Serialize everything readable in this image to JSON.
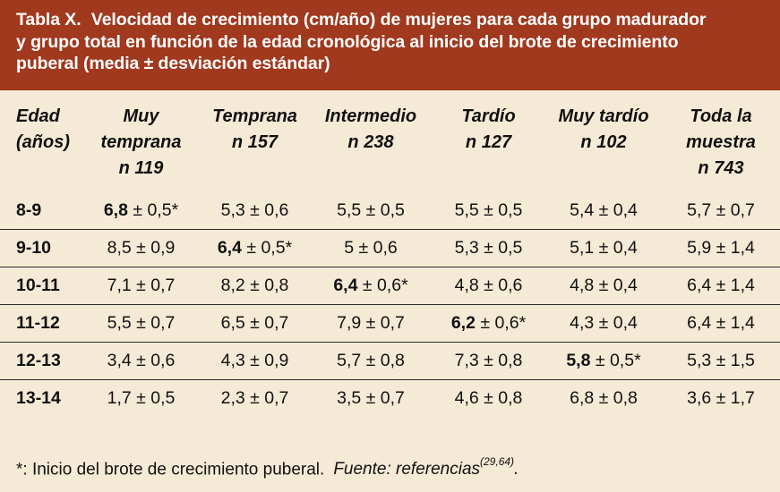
{
  "title": {
    "label": "Tabla X.",
    "line1": "Velocidad de crecimiento (cm/año) de mujeres para cada grupo madurador",
    "line2": "y grupo total en función de la edad cronológica al inicio del brote de crecimiento",
    "line3": "puberal (media ± desviación estándar)"
  },
  "columns": [
    {
      "line1": "Edad",
      "line2": "(años)",
      "line3": ""
    },
    {
      "line1": "Muy",
      "line2": "temprana",
      "line3": "n 119"
    },
    {
      "line1": "Temprana",
      "line2": "n 157",
      "line3": ""
    },
    {
      "line1": "Intermedio",
      "line2": "n 238",
      "line3": ""
    },
    {
      "line1": "Tardío",
      "line2": "n 127",
      "line3": ""
    },
    {
      "line1": "Muy tardío",
      "line2": "n 102",
      "line3": ""
    },
    {
      "line1": "Toda la",
      "line2": "muestra",
      "line3": "n 743"
    }
  ],
  "rows": [
    {
      "age": "8-9",
      "cells": [
        {
          "mean": "6,8",
          "sd": "± 0,5",
          "mark": "*"
        },
        {
          "mean": "5,3",
          "sd": "± 0,6",
          "mark": ""
        },
        {
          "mean": "5,5",
          "sd": "± 0,5",
          "mark": ""
        },
        {
          "mean": "5,5",
          "sd": "± 0,5",
          "mark": ""
        },
        {
          "mean": "5,4",
          "sd": "± 0,4",
          "mark": ""
        },
        {
          "mean": "5,7",
          "sd": "± 0,7",
          "mark": ""
        }
      ]
    },
    {
      "age": "9-10",
      "cells": [
        {
          "mean": "8,5",
          "sd": "± 0,9",
          "mark": ""
        },
        {
          "mean": "6,4",
          "sd": "± 0,5",
          "mark": "*"
        },
        {
          "mean": "5",
          "sd": "± 0,6",
          "mark": ""
        },
        {
          "mean": "5,3",
          "sd": "± 0,5",
          "mark": ""
        },
        {
          "mean": "5,1",
          "sd": "± 0,4",
          "mark": ""
        },
        {
          "mean": "5,9",
          "sd": "± 1,4",
          "mark": ""
        }
      ]
    },
    {
      "age": "10-11",
      "cells": [
        {
          "mean": "7,1",
          "sd": "± 0,7",
          "mark": ""
        },
        {
          "mean": "8,2",
          "sd": "± 0,8",
          "mark": ""
        },
        {
          "mean": "6,4",
          "sd": "± 0,6",
          "mark": "*"
        },
        {
          "mean": "4,8",
          "sd": "± 0,6",
          "mark": ""
        },
        {
          "mean": "4,8",
          "sd": "± 0,4",
          "mark": ""
        },
        {
          "mean": "6,4",
          "sd": "± 1,4",
          "mark": ""
        }
      ]
    },
    {
      "age": "11-12",
      "cells": [
        {
          "mean": "5,5",
          "sd": "± 0,7",
          "mark": ""
        },
        {
          "mean": "6,5",
          "sd": "± 0,7",
          "mark": ""
        },
        {
          "mean": "7,9",
          "sd": "± 0,7",
          "mark": ""
        },
        {
          "mean": "6,2",
          "sd": "± 0,6",
          "mark": "*"
        },
        {
          "mean": "4,3",
          "sd": "± 0,4",
          "mark": ""
        },
        {
          "mean": "6,4",
          "sd": "± 1,4",
          "mark": ""
        }
      ]
    },
    {
      "age": "12-13",
      "cells": [
        {
          "mean": "3,4",
          "sd": "± 0,6",
          "mark": ""
        },
        {
          "mean": "4,3",
          "sd": "± 0,9",
          "mark": ""
        },
        {
          "mean": "5,7",
          "sd": "± 0,8",
          "mark": ""
        },
        {
          "mean": "7,3",
          "sd": "± 0,8",
          "mark": ""
        },
        {
          "mean": "5,8",
          "sd": "± 0,5",
          "mark": "*"
        },
        {
          "mean": "5,3",
          "sd": "± 1,5",
          "mark": ""
        }
      ]
    },
    {
      "age": "13-14",
      "cells": [
        {
          "mean": "1,7",
          "sd": "± 0,5",
          "mark": ""
        },
        {
          "mean": "2,3",
          "sd": "± 0,7",
          "mark": ""
        },
        {
          "mean": "3,5",
          "sd": "± 0,7",
          "mark": ""
        },
        {
          "mean": "4,6",
          "sd": "± 0,8",
          "mark": ""
        },
        {
          "mean": "6,8",
          "sd": "± 0,8",
          "mark": ""
        },
        {
          "mean": "3,6",
          "sd": "± 1,7",
          "mark": ""
        }
      ]
    }
  ],
  "footer": {
    "note": "*: Inicio del brote de crecimiento puberal.",
    "source": "Fuente: referencias",
    "refs": "(29,64)",
    "end": "."
  },
  "colors": {
    "header_bg": "#a0391e",
    "page_bg": "#f5ead6",
    "rule": "#2a2a2a"
  }
}
